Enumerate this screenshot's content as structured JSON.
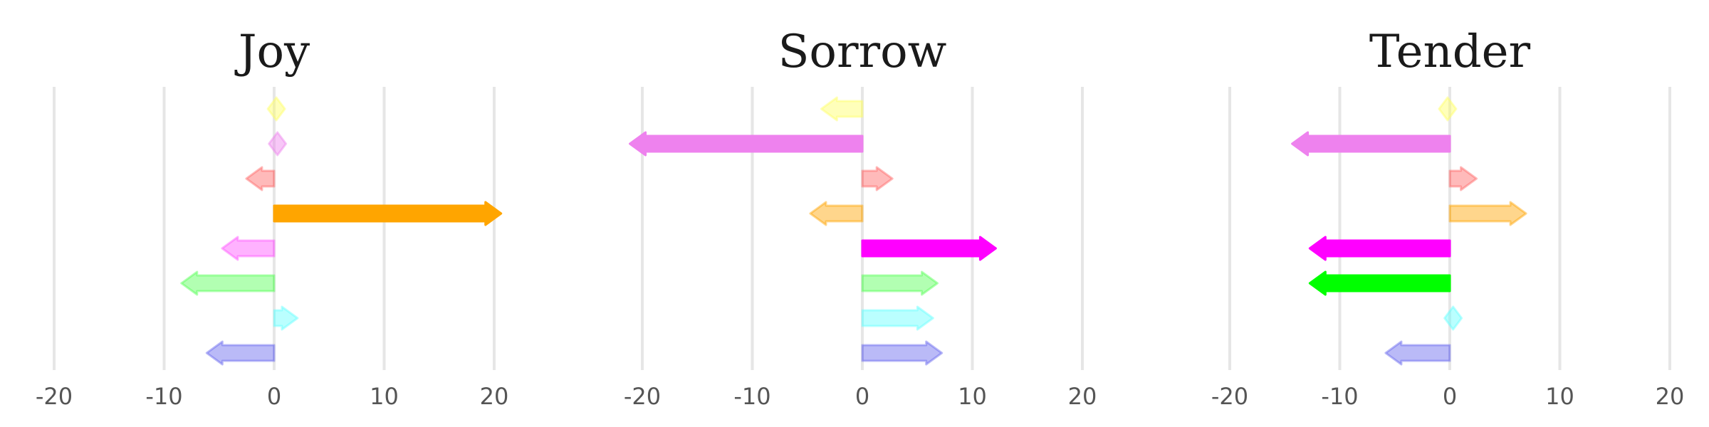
{
  "chart_data": [
    {
      "type": "bar",
      "title": "Joy",
      "xlim": [
        -20,
        20
      ],
      "xticks": [
        "-20",
        "-10",
        "0",
        "10",
        "20"
      ],
      "series": [
        {
          "color": "#ffff66",
          "value": 0.2,
          "highlight": false
        },
        {
          "color": "#ee82ee",
          "value": 0.3,
          "highlight": false
        },
        {
          "color": "#ff6666",
          "value": -2.4,
          "highlight": false
        },
        {
          "color": "#ffa500",
          "value": 20.5,
          "highlight": true
        },
        {
          "color": "#ff55ff",
          "value": -4.6,
          "highlight": false
        },
        {
          "color": "#55ff55",
          "value": -8.3,
          "highlight": false
        },
        {
          "color": "#66ffff",
          "value": 2.0,
          "highlight": false
        },
        {
          "color": "#6666ee",
          "value": -6.0,
          "highlight": false
        }
      ]
    },
    {
      "type": "bar",
      "title": "Sorrow",
      "xlim": [
        -20,
        20
      ],
      "xticks": [
        "-20",
        "-10",
        "0",
        "10",
        "20"
      ],
      "series": [
        {
          "color": "#ffff66",
          "value": -3.6,
          "highlight": false
        },
        {
          "color": "#ee82ee",
          "value": -21.0,
          "highlight": true
        },
        {
          "color": "#ff6666",
          "value": 2.6,
          "highlight": false
        },
        {
          "color": "#ffa500",
          "value": -4.6,
          "highlight": false
        },
        {
          "color": "#ff00ff",
          "value": 12.0,
          "highlight": true
        },
        {
          "color": "#55ff55",
          "value": 6.7,
          "highlight": false
        },
        {
          "color": "#66ffff",
          "value": 6.3,
          "highlight": false
        },
        {
          "color": "#6666ee",
          "value": 7.1,
          "highlight": false
        }
      ]
    },
    {
      "type": "bar",
      "title": "Tender",
      "xlim": [
        -20,
        20
      ],
      "xticks": [
        "-20",
        "-10",
        "0",
        "10",
        "20"
      ],
      "series": [
        {
          "color": "#ffff66",
          "value": -0.2,
          "highlight": false
        },
        {
          "color": "#ee82ee",
          "value": -14.2,
          "highlight": true
        },
        {
          "color": "#ff6666",
          "value": 2.3,
          "highlight": false
        },
        {
          "color": "#ffa500",
          "value": 6.8,
          "highlight": false
        },
        {
          "color": "#ff00ff",
          "value": -12.6,
          "highlight": true
        },
        {
          "color": "#00ff00",
          "value": -12.6,
          "highlight": true
        },
        {
          "color": "#66ffff",
          "value": 0.3,
          "highlight": false
        },
        {
          "color": "#6666ee",
          "value": -5.7,
          "highlight": false
        }
      ]
    }
  ]
}
